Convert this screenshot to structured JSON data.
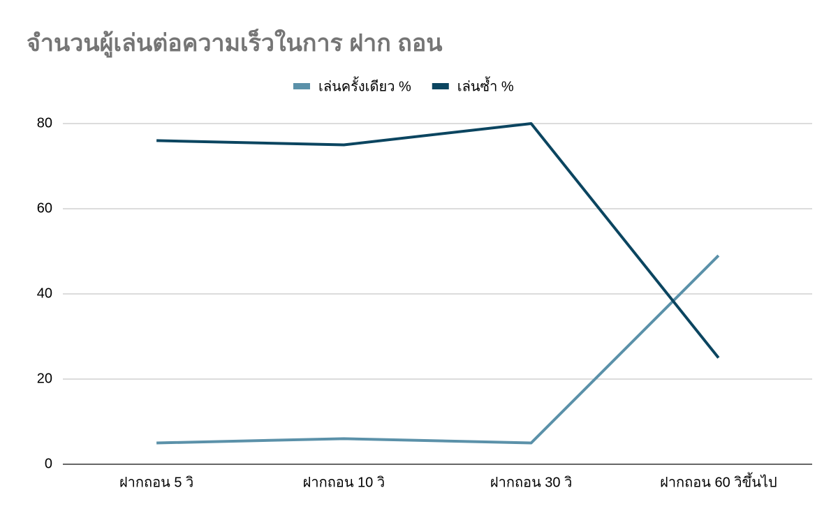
{
  "chart_data": {
    "type": "line",
    "title": "จำนวนผู้เล่นต่อความเร็วในการ ฝาก ถอน",
    "categories": [
      "ฝากถอน 5 วิ",
      "ฝากถอน 10 วิ",
      "ฝากถอน 30 วิ",
      "ฝากถอน 60 วิขึ้นไป"
    ],
    "series": [
      {
        "name": "เล่นครั้งเดียว %",
        "color": "#5b91a9",
        "values": [
          5,
          6,
          5,
          49
        ]
      },
      {
        "name": "เล่นซ้ำ %",
        "color": "#0b4560",
        "values": [
          76,
          75,
          80,
          25
        ]
      }
    ],
    "ylim": [
      0,
      80
    ],
    "yticks": [
      0,
      20,
      40,
      60,
      80
    ],
    "grid": true,
    "legend": "top"
  }
}
